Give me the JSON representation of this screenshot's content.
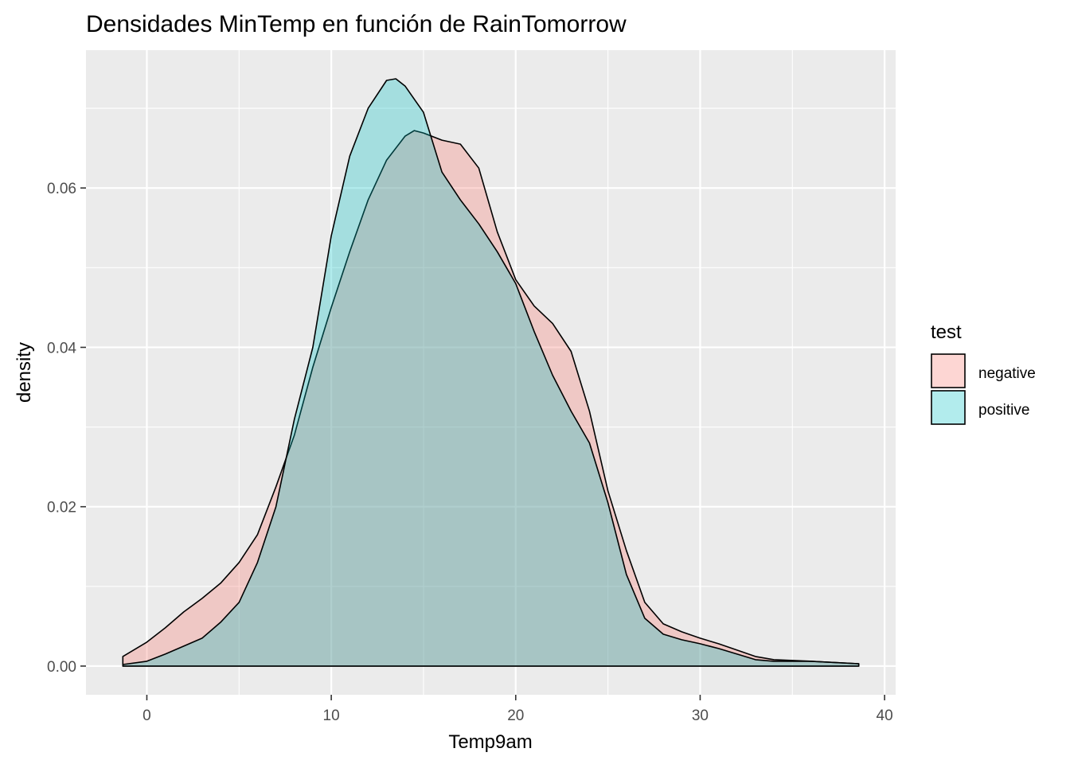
{
  "chart_data": {
    "type": "area",
    "title": "Densidades MinTemp en función de RainTomorrow",
    "xlabel": "Temp9am",
    "ylabel": "density",
    "xlim": [
      -3.3,
      40.6
    ],
    "ylim": [
      -0.0036,
      0.0773
    ],
    "x_ticks": [
      0,
      10,
      20,
      30,
      40
    ],
    "y_ticks": [
      0.0,
      0.02,
      0.04,
      0.06
    ],
    "x_tick_labels": [
      "0",
      "10",
      "20",
      "30",
      "40"
    ],
    "y_tick_labels": [
      "0.00",
      "0.02",
      "0.04",
      "0.06"
    ],
    "grid": true,
    "legend": {
      "title": "test",
      "position": "right"
    },
    "series": [
      {
        "name": "negative",
        "color": "#F8766D",
        "points": [
          [
            -1.3,
            0.0012
          ],
          [
            0,
            0.003
          ],
          [
            1,
            0.0048
          ],
          [
            2,
            0.0068
          ],
          [
            3,
            0.0085
          ],
          [
            4,
            0.0104
          ],
          [
            5,
            0.013
          ],
          [
            6,
            0.0165
          ],
          [
            7,
            0.0225
          ],
          [
            8,
            0.029
          ],
          [
            9,
            0.0375
          ],
          [
            10,
            0.045
          ],
          [
            11,
            0.052
          ],
          [
            12,
            0.0585
          ],
          [
            13,
            0.0635
          ],
          [
            14,
            0.0665
          ],
          [
            14.5,
            0.0672
          ],
          [
            15,
            0.0669
          ],
          [
            16,
            0.066
          ],
          [
            17,
            0.0655
          ],
          [
            18,
            0.0625
          ],
          [
            19,
            0.0545
          ],
          [
            20,
            0.0485
          ],
          [
            21,
            0.0452
          ],
          [
            22,
            0.043
          ],
          [
            23,
            0.0395
          ],
          [
            24,
            0.032
          ],
          [
            25,
            0.022
          ],
          [
            26,
            0.0145
          ],
          [
            27,
            0.008
          ],
          [
            28,
            0.0053
          ],
          [
            29,
            0.0043
          ],
          [
            30,
            0.0035
          ],
          [
            31,
            0.0028
          ],
          [
            32,
            0.002
          ],
          [
            33,
            0.0012
          ],
          [
            34,
            0.0008
          ],
          [
            36,
            0.0006
          ],
          [
            38.6,
            0.0003
          ]
        ]
      },
      {
        "name": "positive",
        "color": "#00BFC4",
        "points": [
          [
            -1.3,
            0.0002
          ],
          [
            0,
            0.0006
          ],
          [
            1,
            0.0015
          ],
          [
            2,
            0.0025
          ],
          [
            3,
            0.0035
          ],
          [
            4,
            0.0055
          ],
          [
            5,
            0.008
          ],
          [
            6,
            0.013
          ],
          [
            7,
            0.02
          ],
          [
            8,
            0.031
          ],
          [
            9,
            0.04
          ],
          [
            10,
            0.054
          ],
          [
            11,
            0.064
          ],
          [
            12,
            0.07
          ],
          [
            13,
            0.0735
          ],
          [
            13.5,
            0.0737
          ],
          [
            14,
            0.0728
          ],
          [
            15,
            0.0695
          ],
          [
            16,
            0.062
          ],
          [
            17,
            0.0585
          ],
          [
            18,
            0.0555
          ],
          [
            19,
            0.052
          ],
          [
            20,
            0.048
          ],
          [
            21,
            0.042
          ],
          [
            22,
            0.0365
          ],
          [
            23,
            0.032
          ],
          [
            24,
            0.028
          ],
          [
            25,
            0.0205
          ],
          [
            26,
            0.0115
          ],
          [
            27,
            0.006
          ],
          [
            28,
            0.004
          ],
          [
            29,
            0.0033
          ],
          [
            30,
            0.0028
          ],
          [
            31,
            0.0022
          ],
          [
            32,
            0.0015
          ],
          [
            33,
            0.0008
          ],
          [
            34,
            0.0006
          ],
          [
            36,
            0.0006
          ],
          [
            38.6,
            0.0003
          ]
        ]
      }
    ]
  }
}
